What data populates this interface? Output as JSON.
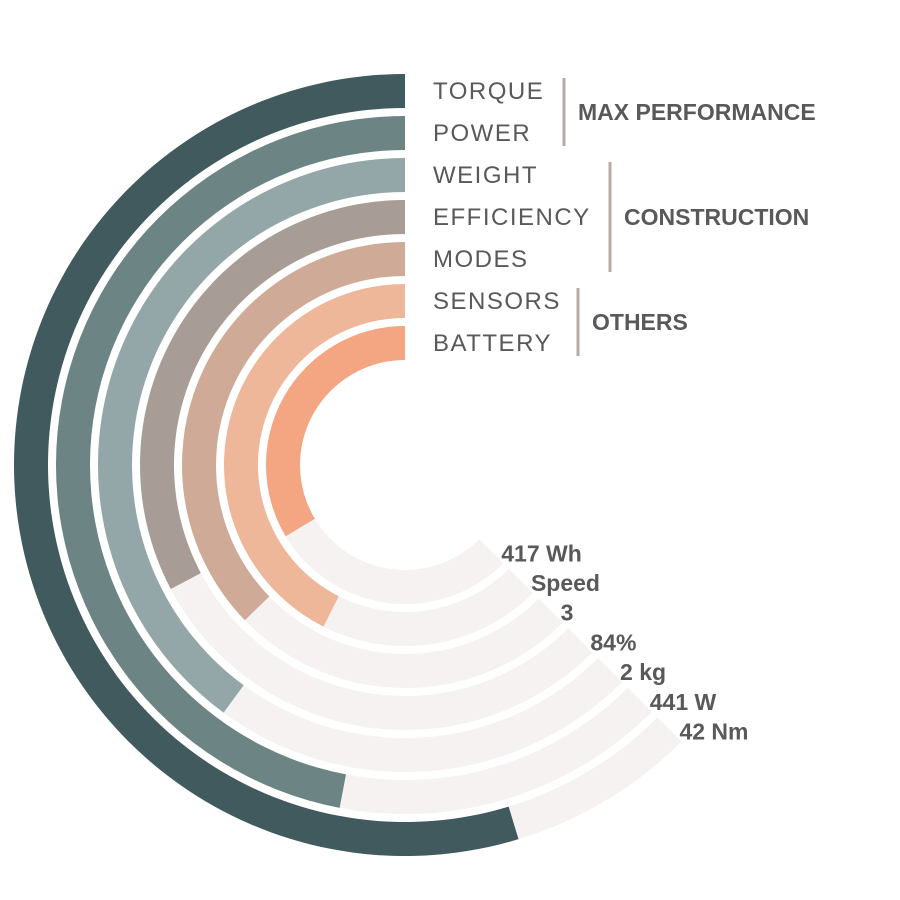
{
  "chart_data": {
    "type": "radial-bar",
    "rings": [
      {
        "label": "TORQUE",
        "value_label": "42 Nm",
        "fraction": 0.875,
        "color": "#405a5e"
      },
      {
        "label": "POWER",
        "value_label": "441 W",
        "fraction": 0.752,
        "color": "#6c8483"
      },
      {
        "label": "WEIGHT",
        "value_label": "2 kg",
        "fraction": 0.639,
        "color": "#93a7a8"
      },
      {
        "label": "EFFICIENCY",
        "value_label": "84%",
        "fraction": 0.524,
        "color": "#a89d96"
      },
      {
        "label": "MODES",
        "value_label": "3",
        "fraction": 0.596,
        "color": "#cfab97"
      },
      {
        "label": "SENSORS",
        "value_label": "Speed",
        "fraction": 0.681,
        "color": "#efb79a"
      },
      {
        "label": "BATTERY",
        "value_label": "417 Wh",
        "fraction": 0.537,
        "color": "#f4a582"
      }
    ],
    "groups": [
      {
        "label": "MAX PERFORMANCE",
        "rings": [
          "TORQUE",
          "POWER"
        ]
      },
      {
        "label": "CONSTRUCTION",
        "rings": [
          "WEIGHT",
          "EFFICIENCY",
          "MODES"
        ]
      },
      {
        "label": "OTHERS",
        "rings": [
          "SENSORS",
          "BATTERY"
        ]
      }
    ],
    "track_color": "#f5f2f1",
    "divider_color": "#b5aaa6"
  }
}
